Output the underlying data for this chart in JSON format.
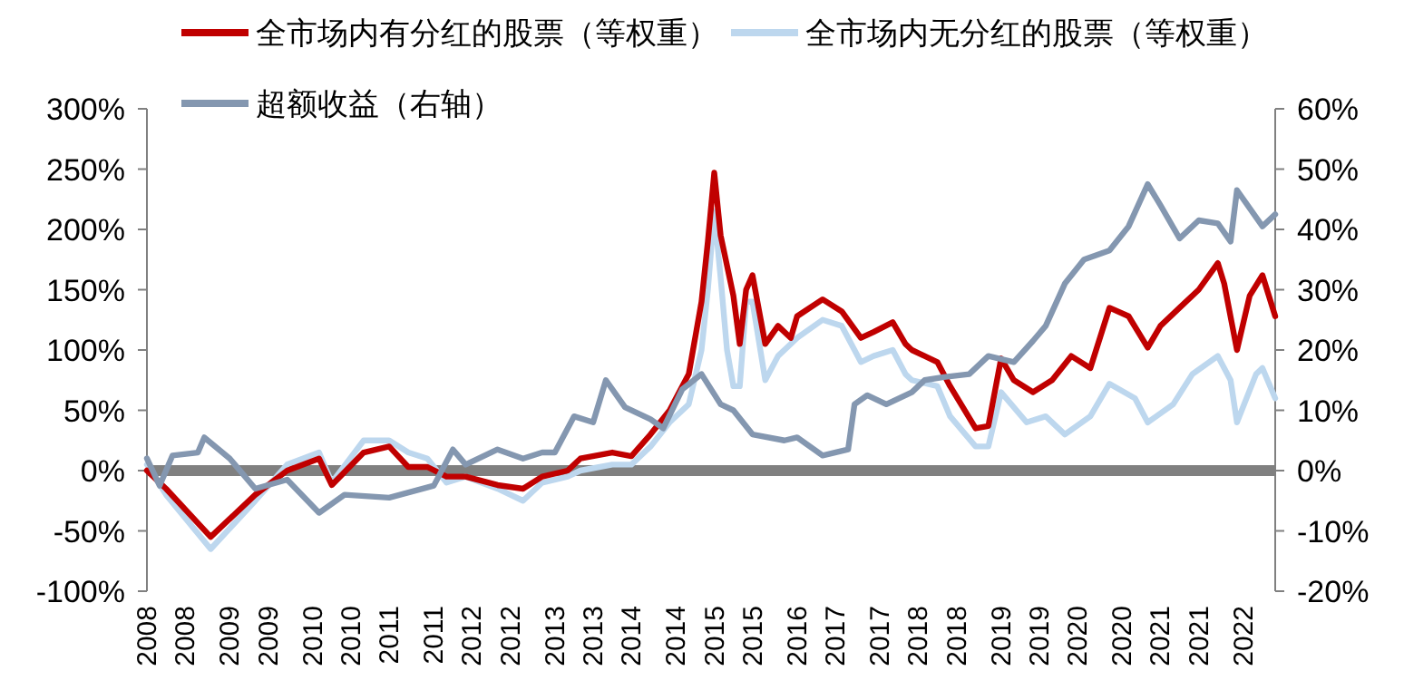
{
  "chart_data": {
    "type": "line",
    "legend": "top",
    "line_style": "solid",
    "marker": "none",
    "xlim": [
      "2008-01",
      "2022-10"
    ],
    "xticks": [
      {
        "value": "2008-01",
        "label": "2008"
      },
      {
        "value": "2008-07",
        "label": "2008"
      },
      {
        "value": "2009-02",
        "label": "2009"
      },
      {
        "value": "2009-08",
        "label": "2009"
      },
      {
        "value": "2010-03",
        "label": "2010"
      },
      {
        "value": "2010-09",
        "label": "2010"
      },
      {
        "value": "2011-03",
        "label": "2011"
      },
      {
        "value": "2011-10",
        "label": "2011"
      },
      {
        "value": "2012-04",
        "label": "2012"
      },
      {
        "value": "2012-10",
        "label": "2012"
      },
      {
        "value": "2013-05",
        "label": "2013"
      },
      {
        "value": "2013-11",
        "label": "2013"
      },
      {
        "value": "2014-05",
        "label": "2014"
      },
      {
        "value": "2014-12",
        "label": "2014"
      },
      {
        "value": "2015-06",
        "label": "2015"
      },
      {
        "value": "2015-12",
        "label": "2015"
      },
      {
        "value": "2016-07",
        "label": "2016"
      },
      {
        "value": "2017-01",
        "label": "2017"
      },
      {
        "value": "2017-08",
        "label": "2017"
      },
      {
        "value": "2018-02",
        "label": "2018"
      },
      {
        "value": "2018-08",
        "label": "2018"
      },
      {
        "value": "2019-03",
        "label": "2019"
      },
      {
        "value": "2019-09",
        "label": "2019"
      },
      {
        "value": "2020-03",
        "label": "2020"
      },
      {
        "value": "2020-10",
        "label": "2020"
      },
      {
        "value": "2021-04",
        "label": "2021"
      },
      {
        "value": "2021-10",
        "label": "2021"
      },
      {
        "value": "2022-05",
        "label": "2022"
      }
    ],
    "ylim": [
      -100,
      300
    ],
    "yticks": [
      {
        "value": -100,
        "label": "-100%"
      },
      {
        "value": -50,
        "label": "-50%"
      },
      {
        "value": 0,
        "label": "0%"
      },
      {
        "value": 50,
        "label": "50%"
      },
      {
        "value": 100,
        "label": "100%"
      },
      {
        "value": 150,
        "label": "150%"
      },
      {
        "value": 200,
        "label": "200%"
      },
      {
        "value": 250,
        "label": "250%"
      },
      {
        "value": 300,
        "label": "300%"
      }
    ],
    "y2lim": [
      -20,
      60
    ],
    "y2ticks": [
      {
        "value": -20,
        "label": "-20%"
      },
      {
        "value": -10,
        "label": "-10%"
      },
      {
        "value": 0,
        "label": "0%"
      },
      {
        "value": 10,
        "label": "10%"
      },
      {
        "value": 20,
        "label": "20%"
      },
      {
        "value": 30,
        "label": "30%"
      },
      {
        "value": 40,
        "label": "40%"
      },
      {
        "value": 50,
        "label": "50%"
      },
      {
        "value": 60,
        "label": "60%"
      }
    ],
    "ref_lines": [
      {
        "axis": "y",
        "value": 0,
        "color": "#808080"
      }
    ],
    "series": [
      {
        "name": "全市场内有分红的股票（等权重）",
        "color": "#c00000",
        "x": [
          "2008-01",
          "2008-04",
          "2008-11",
          "2009-06",
          "2009-11",
          "2010-04",
          "2010-06",
          "2010-11",
          "2011-03",
          "2011-06",
          "2011-09",
          "2011-12",
          "2012-03",
          "2012-08",
          "2012-12",
          "2013-03",
          "2013-07",
          "2013-09",
          "2014-02",
          "2014-05",
          "2014-08",
          "2014-11",
          "2015-02",
          "2015-04",
          "2015-05",
          "2015-06",
          "2015-07",
          "2015-09",
          "2015-10",
          "2015-11",
          "2015-12",
          "2016-02",
          "2016-04",
          "2016-06",
          "2016-07",
          "2016-11",
          "2017-02",
          "2017-05",
          "2017-07",
          "2017-10",
          "2017-12",
          "2018-01",
          "2018-05",
          "2018-07",
          "2018-11",
          "2019-01",
          "2019-03",
          "2019-05",
          "2019-08",
          "2019-11",
          "2020-02",
          "2020-05",
          "2020-08",
          "2020-11",
          "2021-02",
          "2021-04",
          "2021-07",
          "2021-10",
          "2022-01",
          "2022-02",
          "2022-04",
          "2022-06",
          "2022-08",
          "2022-10"
        ],
        "values": [
          0,
          -15,
          -55,
          -20,
          0,
          10,
          -12,
          15,
          20,
          3,
          3,
          -5,
          -5,
          -12,
          -15,
          -5,
          0,
          10,
          15,
          12,
          30,
          50,
          80,
          140,
          190,
          247,
          195,
          145,
          105,
          150,
          162,
          105,
          120,
          110,
          128,
          142,
          132,
          110,
          115,
          123,
          105,
          100,
          90,
          70,
          35,
          37,
          93,
          75,
          65,
          75,
          95,
          85,
          135,
          128,
          102,
          120,
          135,
          150,
          172,
          155,
          100,
          145,
          162,
          128
        ]
      },
      {
        "name": "全市场内无分红的股票（等权重）",
        "color": "#bdd7ee",
        "x": [
          "2008-01",
          "2008-04",
          "2008-11",
          "2009-06",
          "2009-11",
          "2010-04",
          "2010-06",
          "2010-11",
          "2011-03",
          "2011-06",
          "2011-09",
          "2011-12",
          "2012-03",
          "2012-08",
          "2012-12",
          "2013-03",
          "2013-07",
          "2013-09",
          "2014-02",
          "2014-05",
          "2014-08",
          "2014-11",
          "2015-02",
          "2015-04",
          "2015-05",
          "2015-06",
          "2015-07",
          "2015-08",
          "2015-09",
          "2015-10",
          "2015-11",
          "2015-12",
          "2016-02",
          "2016-04",
          "2016-07",
          "2016-11",
          "2017-02",
          "2017-05",
          "2017-07",
          "2017-10",
          "2017-12",
          "2018-01",
          "2018-05",
          "2018-07",
          "2018-11",
          "2019-01",
          "2019-03",
          "2019-07",
          "2019-10",
          "2020-01",
          "2020-05",
          "2020-08",
          "2020-12",
          "2021-02",
          "2021-06",
          "2021-09",
          "2022-01",
          "2022-03",
          "2022-04",
          "2022-07",
          "2022-08",
          "2022-10"
        ],
        "values": [
          5,
          -20,
          -65,
          -25,
          5,
          15,
          -10,
          25,
          25,
          15,
          10,
          -10,
          -5,
          -15,
          -25,
          -10,
          -5,
          0,
          5,
          5,
          20,
          40,
          55,
          100,
          150,
          215,
          160,
          100,
          70,
          70,
          140,
          140,
          75,
          95,
          110,
          125,
          120,
          90,
          95,
          100,
          80,
          75,
          70,
          45,
          20,
          20,
          65,
          40,
          45,
          30,
          45,
          72,
          60,
          40,
          55,
          80,
          95,
          75,
          40,
          80,
          85,
          60
        ]
      },
      {
        "name": "超额收益（右轴）",
        "color": "#8497b0",
        "axis": "y2",
        "x": [
          "2008-01",
          "2008-03",
          "2008-05",
          "2008-09",
          "2008-10",
          "2009-02",
          "2009-06",
          "2009-11",
          "2010-04",
          "2010-08",
          "2011-03",
          "2011-10",
          "2012-01",
          "2012-03",
          "2012-08",
          "2012-12",
          "2013-03",
          "2013-05",
          "2013-08",
          "2013-11",
          "2014-01",
          "2014-04",
          "2014-08",
          "2014-10",
          "2015-01",
          "2015-04",
          "2015-07",
          "2015-09",
          "2015-12",
          "2016-05",
          "2016-07",
          "2016-11",
          "2017-03",
          "2017-04",
          "2017-06",
          "2017-09",
          "2018-01",
          "2018-03",
          "2018-06",
          "2018-10",
          "2019-01",
          "2019-05",
          "2019-08",
          "2019-10",
          "2020-01",
          "2020-04",
          "2020-08",
          "2020-11",
          "2021-02",
          "2021-04",
          "2021-07",
          "2021-10",
          "2022-01",
          "2022-03",
          "2022-04",
          "2022-08",
          "2022-10"
        ],
        "values": [
          2,
          -2.5,
          2.5,
          3,
          5.5,
          2,
          -3,
          -1.5,
          -7,
          -4,
          -4.5,
          -2.5,
          3.5,
          1,
          3.5,
          2,
          3,
          3,
          9,
          8,
          15,
          10.5,
          8.5,
          7,
          13.5,
          16,
          11,
          10,
          6,
          5,
          5.5,
          2.5,
          3.5,
          11,
          12.5,
          11,
          13,
          15,
          15.5,
          16,
          19,
          18,
          21.5,
          24,
          31,
          35,
          36.5,
          40.5,
          47.5,
          44,
          38.5,
          41.5,
          41,
          38,
          46.5,
          40.5,
          42.5
        ]
      }
    ]
  }
}
